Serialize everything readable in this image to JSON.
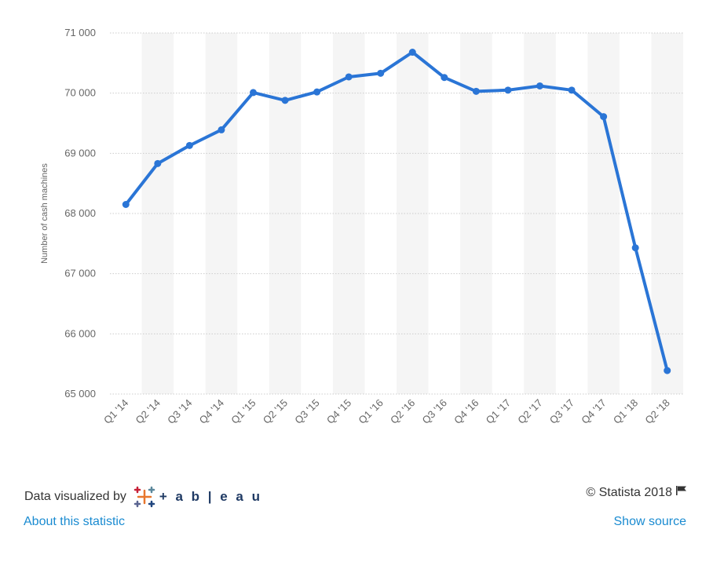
{
  "chart_data": {
    "type": "line",
    "title": "",
    "xlabel": "",
    "ylabel": "Number of cash machines",
    "ylim": [
      65000,
      71000
    ],
    "yticks": [
      65000,
      66000,
      67000,
      68000,
      69000,
      70000,
      71000
    ],
    "ytick_labels": [
      "65 000",
      "66 000",
      "67 000",
      "68 000",
      "69 000",
      "70 000",
      "71 000"
    ],
    "categories": [
      "Q1 '14",
      "Q2 '14",
      "Q3 '14",
      "Q4 '14",
      "Q1 '15",
      "Q2 '15",
      "Q3 '15",
      "Q4 '15",
      "Q1 '16",
      "Q2 '16",
      "Q3 '16",
      "Q4 '16",
      "Q1 '17",
      "Q2 '17",
      "Q3 '17",
      "Q4 '17",
      "Q1 '18",
      "Q2 '18"
    ],
    "series": [
      {
        "values": [
          68150,
          68830,
          69130,
          69390,
          70010,
          69880,
          70020,
          70270,
          70330,
          70680,
          70260,
          70030,
          70050,
          70120,
          70050,
          69610,
          67430,
          65390
        ]
      }
    ],
    "grid": true,
    "colors": {
      "line": "#2a75d6",
      "band": "#f5f5f5",
      "grid": "#cccccc"
    }
  },
  "footer": {
    "data_visualized_by": "Data visualized by",
    "tableau_label": "+ a b | e a u",
    "copyright": "© Statista 2018",
    "about_link": "About this statistic",
    "source_link": "Show source"
  }
}
